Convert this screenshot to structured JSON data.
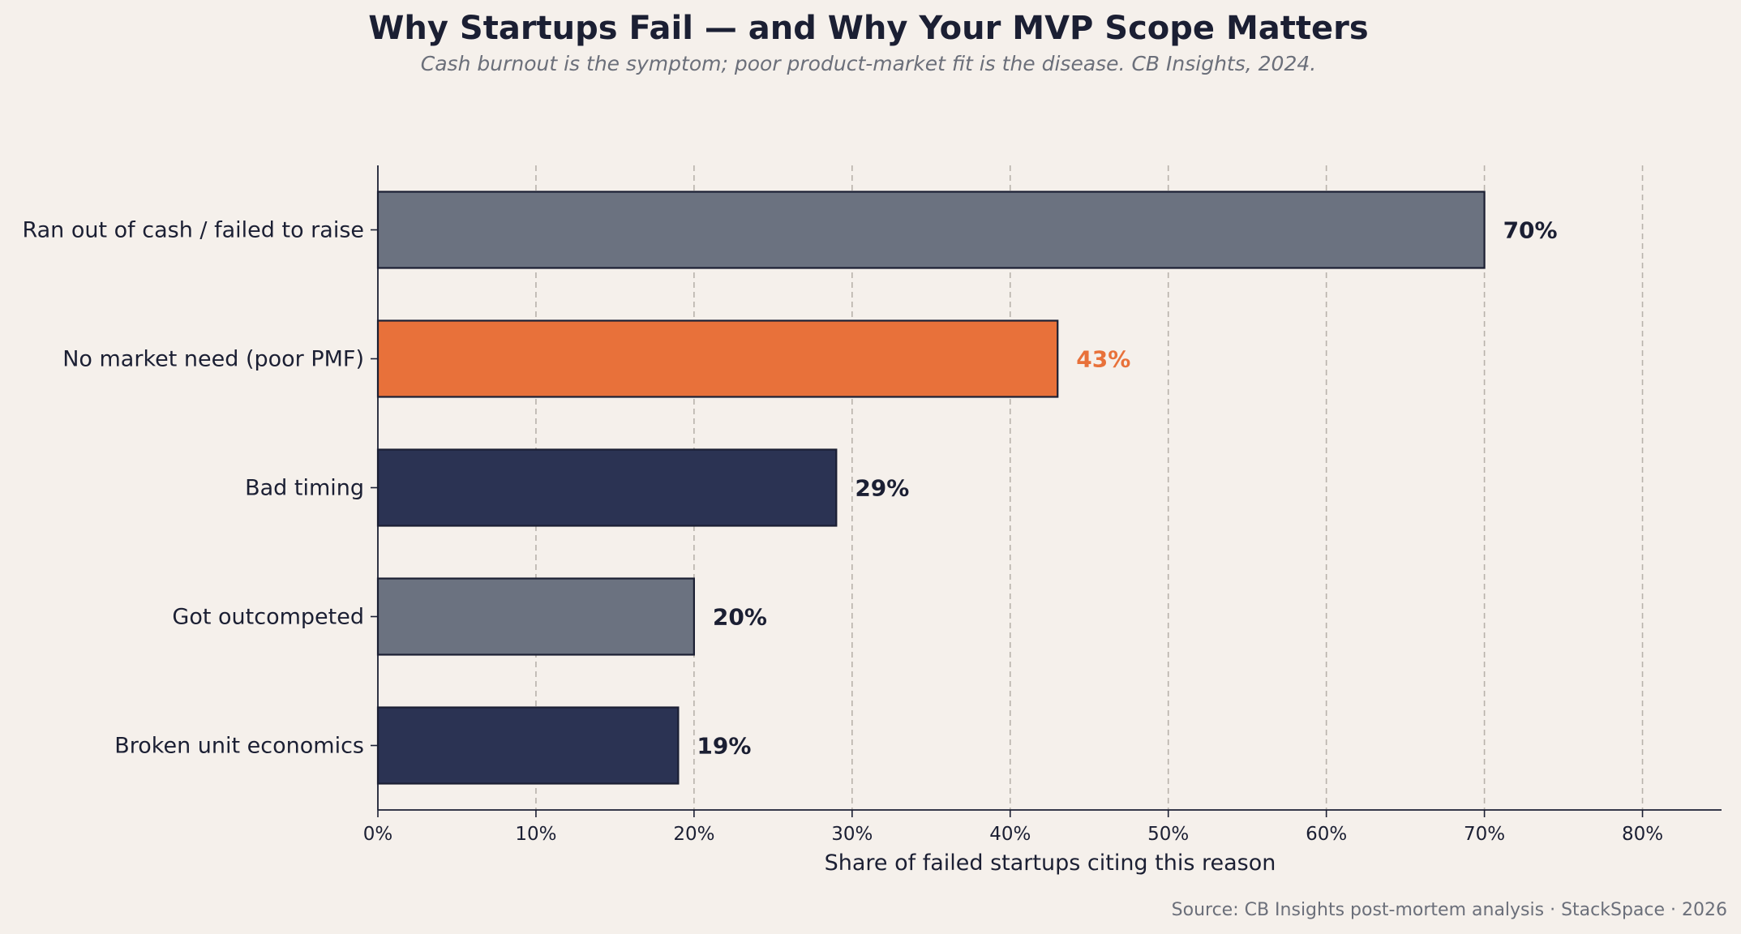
{
  "chart_data": {
    "type": "bar",
    "orientation": "horizontal",
    "title": "Why Startups Fail — and Why Your MVP Scope Matters",
    "subtitle": "Cash burnout is the symptom; poor product-market fit is the disease. CB Insights, 2024.",
    "xlabel": "Share of failed startups citing this reason",
    "ylabel": "",
    "categories": [
      "Ran out of cash / failed to raise",
      "No market need (poor PMF)",
      "Bad timing",
      "Got outcompeted",
      "Broken unit economics"
    ],
    "values": [
      70,
      43,
      29,
      20,
      19
    ],
    "value_labels": [
      "70%",
      "43%",
      "29%",
      "20%",
      "19%"
    ],
    "bar_colors": [
      "#6b7280",
      "#e8713a",
      "#2b3353",
      "#6b7280",
      "#2b3353"
    ],
    "label_colors": [
      "#1b1f33",
      "#e8713a",
      "#1b1f33",
      "#1b1f33",
      "#1b1f33"
    ],
    "highlight_category": "No market need (poor PMF)",
    "xlim": [
      0,
      85
    ],
    "xticks": [
      0,
      10,
      20,
      30,
      40,
      50,
      60,
      70,
      80
    ],
    "xtick_labels": [
      "0%",
      "10%",
      "20%",
      "30%",
      "40%",
      "50%",
      "60%",
      "70%",
      "80%"
    ],
    "grid": "x-dashed",
    "legend": "none",
    "source": "Source: CB Insights post-mortem analysis · StackSpace · 2026"
  },
  "colors": {
    "background": "#f5f0eb",
    "text_dark": "#1b1f33",
    "text_muted": "#6b6f7a",
    "grid": "#b8b2ab",
    "bar_edge": "#1b1f33"
  }
}
